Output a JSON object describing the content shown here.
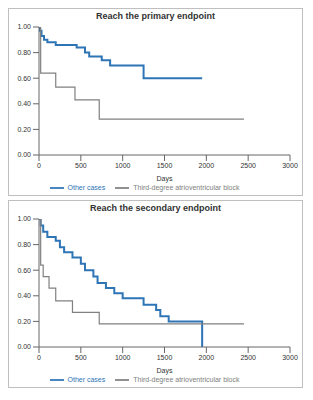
{
  "chart_data": [
    {
      "type": "line",
      "title": "Reach the primary endpoint",
      "x_label": "Days",
      "xlim": [
        0,
        3000
      ],
      "xticks": [
        0,
        500,
        1000,
        1500,
        2000,
        2500,
        3000
      ],
      "ylim": [
        0,
        1
      ],
      "yticks": [
        {
          "value": 0,
          "label": "0.00"
        },
        {
          "value": 0.2,
          "label": "0.20"
        },
        {
          "value": 0.4,
          "label": "0.40"
        },
        {
          "value": 0.6,
          "label": "0.60"
        },
        {
          "value": 0.8,
          "label": "0.80"
        },
        {
          "value": 1,
          "label": "1.00"
        }
      ],
      "grid": false,
      "legend": "bottom",
      "line_style": "step",
      "series": [
        {
          "name": "Other cases",
          "color": "#2e75b6",
          "x": [
            0,
            10,
            30,
            60,
            100,
            200,
            450,
            550,
            600,
            750,
            850,
            1250,
            1950
          ],
          "values": [
            1.0,
            0.97,
            0.93,
            0.9,
            0.88,
            0.86,
            0.84,
            0.8,
            0.77,
            0.74,
            0.7,
            0.6,
            0.6
          ]
        },
        {
          "name": "Third-degree atrioventricular block",
          "color": "#808080",
          "x": [
            0,
            20,
            200,
            430,
            720,
            2450
          ],
          "values": [
            1.0,
            0.64,
            0.53,
            0.43,
            0.28,
            0.28
          ]
        }
      ]
    },
    {
      "type": "line",
      "title": "Reach the secondary endpoint",
      "x_label": "Days",
      "xlim": [
        0,
        3000
      ],
      "xticks": [
        0,
        500,
        1000,
        1500,
        2000,
        2500,
        3000
      ],
      "ylim": [
        0,
        1
      ],
      "yticks": [
        {
          "value": 0,
          "label": "0.00"
        },
        {
          "value": 0.2,
          "label": "0.20"
        },
        {
          "value": 0.4,
          "label": "0.40"
        },
        {
          "value": 0.6,
          "label": "0.60"
        },
        {
          "value": 0.8,
          "label": "0.80"
        },
        {
          "value": 1,
          "label": "1.00"
        }
      ],
      "grid": false,
      "legend": "bottom",
      "line_style": "step",
      "series": [
        {
          "name": "Other cases",
          "color": "#2e75b6",
          "x": [
            0,
            20,
            50,
            100,
            200,
            250,
            300,
            400,
            500,
            550,
            650,
            700,
            800,
            900,
            1000,
            1250,
            1400,
            1450,
            1550,
            1950
          ],
          "values": [
            1.0,
            0.95,
            0.9,
            0.86,
            0.83,
            0.78,
            0.74,
            0.7,
            0.65,
            0.6,
            0.55,
            0.5,
            0.46,
            0.42,
            0.38,
            0.33,
            0.29,
            0.24,
            0.2,
            0.0
          ]
        },
        {
          "name": "Third-degree atrioventricular block",
          "color": "#808080",
          "x": [
            0,
            20,
            50,
            120,
            200,
            400,
            720,
            2450
          ],
          "values": [
            1.0,
            0.64,
            0.55,
            0.46,
            0.36,
            0.27,
            0.18,
            0.18
          ]
        }
      ]
    }
  ]
}
